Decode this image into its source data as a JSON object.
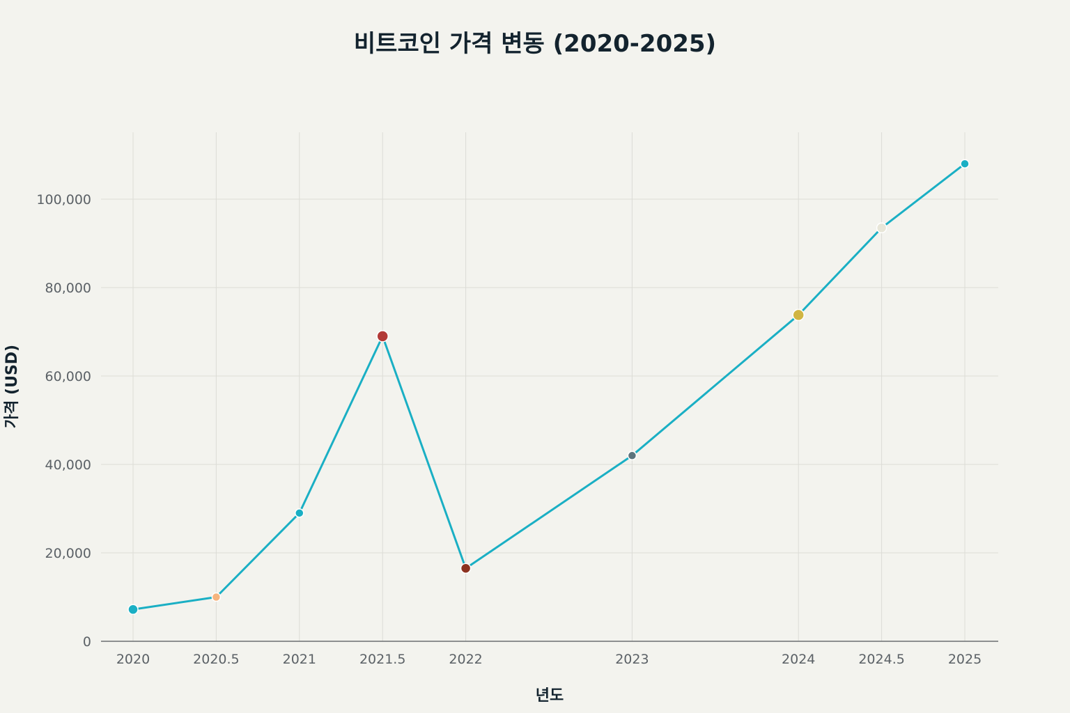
{
  "chart_data": {
    "type": "line",
    "title": "비트코인 가격 변동 (2020-2025)",
    "xlabel": "년도",
    "ylabel": "가격 (USD)",
    "xlim": [
      2019.8,
      2025.2
    ],
    "ylim": [
      0,
      115000
    ],
    "x_ticks": [
      2020,
      2020.5,
      2021,
      2021.5,
      2022,
      2023,
      2024,
      2024.5,
      2025
    ],
    "x_tick_labels": [
      "2020",
      "2020.5",
      "2021",
      "2021.5",
      "2022",
      "2023",
      "2024",
      "2024.5",
      "2025"
    ],
    "y_ticks": [
      0,
      20000,
      40000,
      60000,
      80000,
      100000
    ],
    "y_tick_labels": [
      "0",
      "20,000",
      "40,000",
      "60,000",
      "80,000",
      "100,000"
    ],
    "grid": true,
    "series": [
      {
        "color": "#1aafc4",
        "x": [
          2020,
          2020.5,
          2021,
          2021.5,
          2022,
          2023,
          2024,
          2024.5,
          2025
        ],
        "y": [
          7200,
          10000,
          29000,
          69000,
          16500,
          42000,
          73800,
          93500,
          108000
        ],
        "marker_colors": [
          "#1aafc4",
          "#f5b47e",
          "#1aafc4",
          "#b23a37",
          "#8c3220",
          "#5d747d",
          "#d0b543",
          "#e8e6d8",
          "#1aafc4"
        ],
        "marker_sizes": [
          7,
          6,
          6,
          8,
          7,
          6,
          8,
          7,
          6
        ]
      }
    ]
  }
}
